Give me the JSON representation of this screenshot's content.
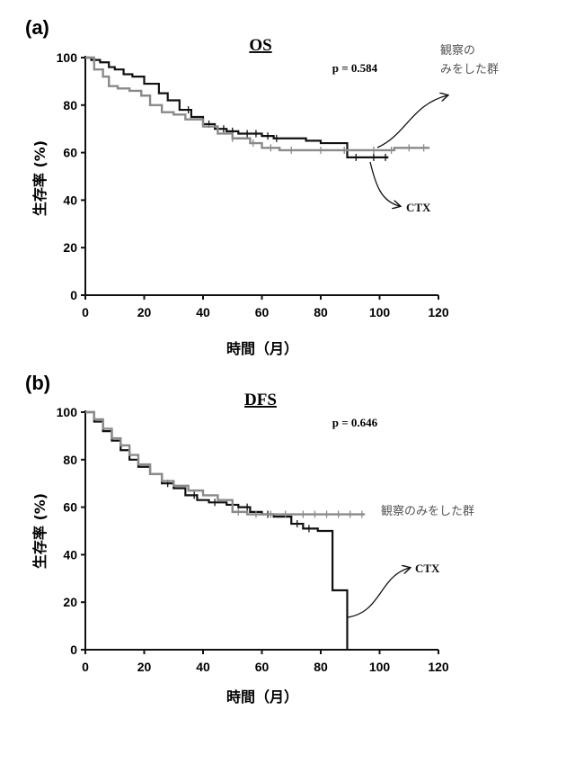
{
  "panels": [
    {
      "label": "(a)",
      "pvalue": "p = 0.584",
      "annotation_obs_lines": [
        "観察の",
        "みをした群"
      ],
      "annotation_ctx": "CTX"
    },
    {
      "label": "(b)",
      "pvalue": "p = 0.646",
      "annotation_obs_lines": [
        "観察のみをした群"
      ],
      "annotation_ctx": "CTX"
    }
  ],
  "colors": {
    "ctx": "#111111",
    "observation": "#8a8a8a",
    "axis": "#111111"
  },
  "chart_data": [
    {
      "type": "line",
      "title": "OS",
      "xlabel": "時間（月）",
      "ylabel": "生存率 (%)",
      "xlim": [
        0,
        120
      ],
      "ylim": [
        0,
        100
      ],
      "xticks": [
        0,
        20,
        40,
        60,
        80,
        100,
        120
      ],
      "yticks": [
        0,
        20,
        40,
        60,
        80,
        100
      ],
      "grid": false,
      "step": true,
      "series": [
        {
          "name": "CTX",
          "color": "#111111",
          "x": [
            0,
            2,
            5,
            8,
            10,
            13,
            16,
            20,
            25,
            28,
            32,
            36,
            40,
            44,
            48,
            52,
            56,
            60,
            64,
            70,
            75,
            80,
            85,
            89,
            95,
            100,
            103
          ],
          "y": [
            100,
            99,
            98,
            96,
            95,
            93,
            92,
            89,
            85,
            82,
            78,
            75,
            72,
            70,
            69,
            68,
            68,
            67,
            66,
            66,
            65,
            64,
            64,
            58,
            58,
            58,
            58
          ],
          "censor_x": [
            35,
            42,
            47,
            50,
            55,
            58,
            62,
            65,
            92,
            98,
            102
          ]
        },
        {
          "name": "観察のみをした群",
          "color": "#8a8a8a",
          "x": [
            0,
            3,
            6,
            8,
            11,
            15,
            19,
            22,
            26,
            30,
            34,
            40,
            45,
            50,
            56,
            60,
            66,
            75,
            85,
            95,
            105,
            117
          ],
          "y": [
            100,
            95,
            92,
            88,
            87,
            86,
            84,
            80,
            77,
            76,
            74,
            71,
            68,
            66,
            64,
            62,
            61,
            61,
            61,
            61,
            62,
            62
          ],
          "censor_x": [
            50,
            57,
            63,
            70,
            80,
            88,
            98,
            104,
            110,
            115
          ]
        }
      ]
    },
    {
      "type": "line",
      "title": "DFS",
      "xlabel": "時間（月）",
      "ylabel": "生存率 (%)",
      "xlim": [
        0,
        120
      ],
      "ylim": [
        0,
        100
      ],
      "xticks": [
        0,
        20,
        40,
        60,
        80,
        100,
        120
      ],
      "yticks": [
        0,
        20,
        40,
        60,
        80,
        100
      ],
      "grid": false,
      "step": true,
      "series": [
        {
          "name": "CTX",
          "color": "#111111",
          "x": [
            0,
            3,
            6,
            9,
            12,
            15,
            18,
            22,
            26,
            30,
            34,
            38,
            42,
            48,
            52,
            56,
            60,
            64,
            70,
            74,
            79,
            84,
            88,
            89
          ],
          "y": [
            100,
            96,
            92,
            88,
            84,
            80,
            77,
            74,
            70,
            68,
            65,
            63,
            62,
            61,
            60,
            58,
            57,
            56,
            53,
            51,
            50,
            25,
            25,
            0
          ],
          "censor_x": [
            28,
            37,
            44,
            55,
            62,
            72,
            76
          ]
        },
        {
          "name": "観察のみをした群",
          "color": "#8a8a8a",
          "x": [
            0,
            3,
            6,
            9,
            12,
            15,
            18,
            22,
            26,
            30,
            35,
            40,
            45,
            50,
            55,
            60,
            65,
            75,
            85,
            95
          ],
          "y": [
            100,
            97,
            93,
            89,
            86,
            82,
            78,
            74,
            71,
            69,
            67,
            65,
            63,
            58,
            57,
            57,
            57,
            57,
            57,
            57
          ],
          "censor_x": [
            52,
            58,
            63,
            68,
            74,
            78,
            82,
            86,
            90,
            94
          ]
        }
      ]
    }
  ]
}
